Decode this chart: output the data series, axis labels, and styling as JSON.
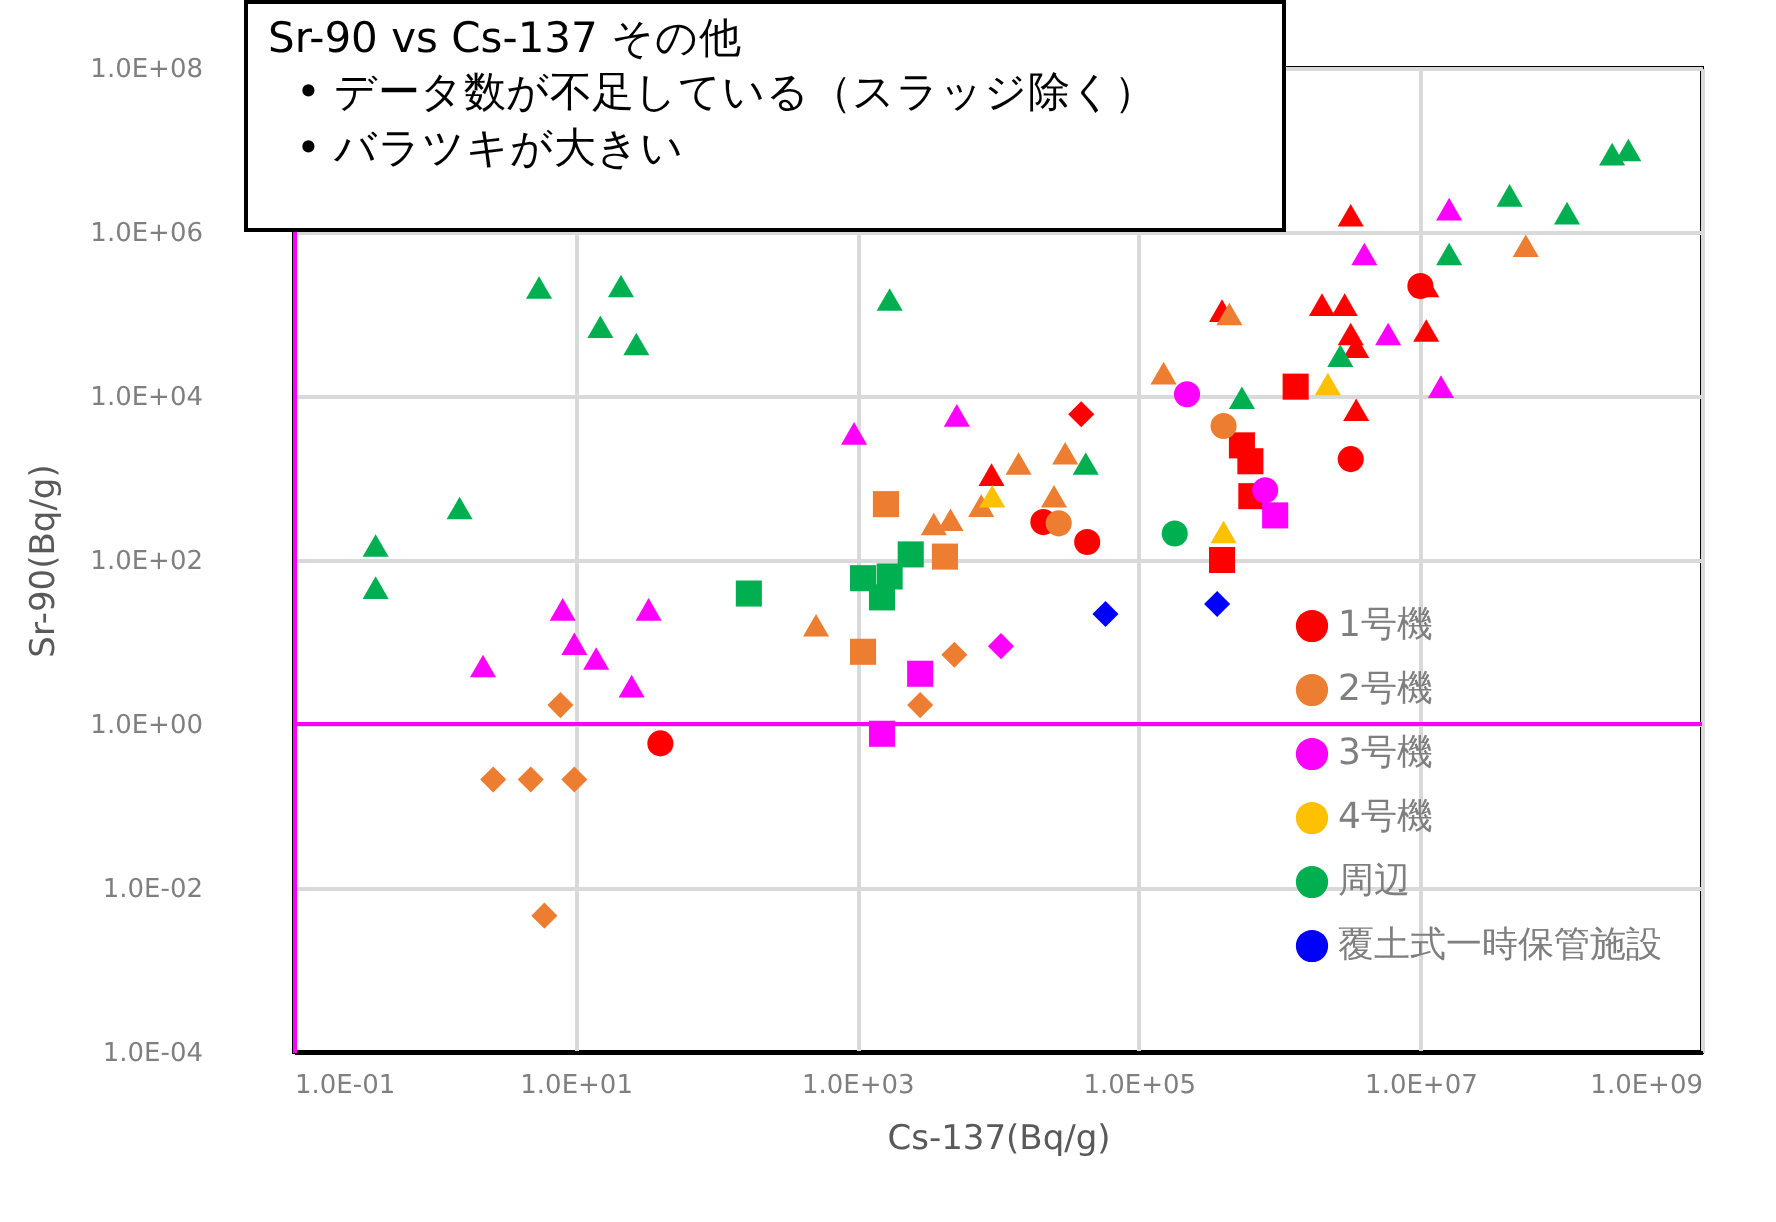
{
  "chart_data": {
    "type": "scatter",
    "title": "Sr-90 vs Cs-137 その他",
    "annotations": [
      "• データ数が不足している（スラッジ除く）",
      "• バラツキが大きい"
    ],
    "xlabel": "Cs-137(Bq/g)",
    "ylabel": "Sr-90(Bq/g)",
    "log": "xy",
    "grid": true,
    "legend": "bottom right",
    "xlim": [
      0.1,
      1000000000
    ],
    "ylim": [
      0.0001,
      100000000
    ],
    "xticks": [
      {
        "value": 0.1,
        "label": "1.0E-01"
      },
      {
        "value": 10,
        "label": "1.0E+01"
      },
      {
        "value": 1000,
        "label": "1.0E+03"
      },
      {
        "value": 100000,
        "label": "1.0E+05"
      },
      {
        "value": 10000000,
        "label": "1.0E+07"
      },
      {
        "value": 1000000000,
        "label": "1.0E+09"
      }
    ],
    "yticks": [
      {
        "value": 0.0001,
        "label": "1.0E-04"
      },
      {
        "value": 0.01,
        "label": "1.0E-02"
      },
      {
        "value": 1,
        "label": "1.0E+00"
      },
      {
        "value": 100,
        "label": "1.0E+02"
      },
      {
        "value": 10000,
        "label": "1.0E+04"
      },
      {
        "value": 1000000,
        "label": "1.0E+06"
      },
      {
        "value": 100000000,
        "label": "1.0E+08"
      }
    ],
    "ref_lines": [
      {
        "axis": "y",
        "value": 1,
        "color": "#ff00ff"
      }
    ],
    "series": [
      {
        "name": "1号機",
        "color": "#ff0000",
        "marker": "circle",
        "x": [
          40,
          21000,
          43000,
          3200000,
          10000000
        ],
        "values": [
          0.58,
          290,
          166,
          1700,
          220000
        ]
      },
      {
        "color": "#ff0000",
        "marker": "triangle",
        "x": [
          9000,
          390000,
          3200000,
          2000000,
          2900000,
          3200000,
          3500000,
          3500000,
          11000000,
          11000000
        ],
        "values": [
          1100,
          110000,
          1600000,
          130000,
          130000,
          57000,
          40000,
          6800,
          220000,
          63000
        ]
      },
      {
        "color": "#ff0000",
        "marker": "square",
        "x": [
          1300000,
          540000,
          620000,
          630000,
          390000
        ],
        "values": [
          13000,
          2500,
          1600,
          600,
          100
        ]
      },
      {
        "color": "#ff0000",
        "marker": "diamond",
        "x": [
          39000
        ],
        "values": [
          6000
        ]
      },
      {
        "name": "2号機",
        "color": "#ed7d31",
        "marker": "circle",
        "x": [
          27000,
          400000
        ],
        "values": [
          280,
          4300
        ]
      },
      {
        "color": "#ed7d31",
        "marker": "diamond",
        "x": [
          2.6,
          4.8,
          9.8,
          6,
          7.8,
          2800,
          4900
        ],
        "values": [
          0.21,
          0.21,
          0.21,
          0.0046,
          1.7,
          1.7,
          7
        ]
      },
      {
        "color": "#ed7d31",
        "marker": "triangle",
        "x": [
          510,
          3500,
          4600,
          7600,
          14000,
          30000,
          25000,
          150000,
          440000,
          56000000
        ],
        "values": [
          16,
          275,
          310,
          460,
          1500,
          2000,
          600,
          19000,
          100000,
          680000
        ]
      },
      {
        "color": "#ed7d31",
        "marker": "square",
        "x": [
          1100,
          1600,
          4200
        ],
        "values": [
          7.6,
          480,
          110
        ]
      },
      {
        "name": "3号機",
        "color": "#ff00ff",
        "marker": "circle",
        "x": [
          220000,
          790000
        ],
        "values": [
          10500,
          710
        ]
      },
      {
        "color": "#ff00ff",
        "marker": "triangle",
        "x": [
          2.2,
          8.1,
          9.8,
          14,
          25,
          33,
          950,
          5100,
          4000000,
          16000000,
          5900000,
          14000000
        ],
        "values": [
          5.1,
          25,
          9.5,
          6.3,
          2.9,
          25,
          3500,
          5800,
          540000,
          1900000,
          57000,
          13000
        ]
      },
      {
        "color": "#ff00ff",
        "marker": "square",
        "x": [
          2800,
          1500,
          930000
        ],
        "values": [
          4.1,
          0.76,
          350
        ]
      },
      {
        "color": "#ff00ff",
        "marker": "diamond",
        "x": [
          10500
        ],
        "values": [
          8.9
        ]
      },
      {
        "name": "4号機",
        "color": "#ffc000",
        "marker": "triangle",
        "x": [
          9100,
          400000,
          2200000
        ],
        "values": [
          600,
          220,
          14000
        ]
      },
      {
        "name": "周辺",
        "color": "#00b050",
        "marker": "circle",
        "x": [
          180000
        ],
        "values": [
          210
        ]
      },
      {
        "color": "#00b050",
        "marker": "triangle",
        "x": [
          0.38,
          0.38,
          1.5,
          5.5,
          15,
          21,
          27,
          1700,
          42000,
          540000,
          2700000,
          16000000,
          43000000,
          110000000,
          230000000,
          300000000
        ],
        "values": [
          150,
          46,
          430,
          210000,
          70000,
          220000,
          43000,
          150000,
          1500,
          9500,
          31000,
          540000,
          2800000,
          1700000,
          8900000,
          10000000
        ]
      },
      {
        "color": "#00b050",
        "marker": "square",
        "x": [
          170,
          1100,
          1700,
          1500,
          2400
        ],
        "values": [
          39,
          60,
          63,
          35,
          117
        ]
      },
      {
        "name": "覆土式一時保管施設",
        "color": "#0000ff",
        "marker": "diamond",
        "x": [
          58000,
          360000
        ],
        "values": [
          22,
          29
        ]
      }
    ]
  }
}
